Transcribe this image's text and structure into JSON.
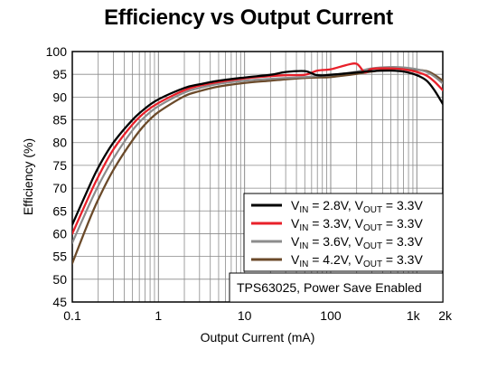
{
  "chart_data": {
    "type": "line",
    "title": "Efficiency vs Output Current",
    "xlabel": "Output Current (mA)",
    "ylabel": "Efficiency (%)",
    "xscale": "log",
    "xlim": [
      0.1,
      2000
    ],
    "ylim": [
      45,
      100
    ],
    "grid": true,
    "x_tick_labels": [
      "0.1",
      "1",
      "10",
      "100",
      "1k",
      "2k"
    ],
    "y_tick_labels": [
      "45",
      "50",
      "55",
      "60",
      "65",
      "70",
      "75",
      "80",
      "85",
      "90",
      "95",
      "100"
    ],
    "legend_position": "bottom-right",
    "annotation": "TPS63025, Power Save Enabled",
    "series": [
      {
        "name_parts": [
          "V",
          "IN",
          " = 2.8V, V",
          "OUT",
          " = 3.3V"
        ],
        "color": "#000000",
        "x": [
          0.1,
          0.15,
          0.2,
          0.3,
          0.5,
          0.7,
          1,
          2,
          3,
          5,
          10,
          20,
          30,
          50,
          70,
          100,
          200,
          300,
          500,
          700,
          1000,
          1300,
          1600,
          2000
        ],
        "y": [
          62,
          69.5,
          74.5,
          80,
          85,
          87.5,
          89.5,
          92,
          92.8,
          93.6,
          94.3,
          94.9,
          95.5,
          95.7,
          94.8,
          94.9,
          95.4,
          95.7,
          95.8,
          95.6,
          94.8,
          93.6,
          91.5,
          88.5
        ]
      },
      {
        "name_parts": [
          "V",
          "IN",
          " = 3.3V, V",
          "OUT",
          " = 3.3V"
        ],
        "color": "#e8202a",
        "x": [
          0.1,
          0.15,
          0.2,
          0.3,
          0.5,
          0.7,
          1,
          2,
          3,
          5,
          10,
          20,
          30,
          50,
          70,
          100,
          150,
          200,
          250,
          300,
          500,
          700,
          1000,
          1300,
          1600,
          2000
        ],
        "y": [
          60,
          67.5,
          72.5,
          78.5,
          84,
          86.7,
          88.7,
          91.5,
          92.5,
          93.3,
          94.1,
          94.6,
          94.8,
          94.9,
          95.8,
          96.1,
          97,
          97.3,
          95.4,
          96.2,
          96.3,
          96.1,
          95.5,
          94.7,
          93.4,
          91.5
        ]
      },
      {
        "name_parts": [
          "V",
          "IN",
          " = 3.6V, V",
          "OUT",
          " = 3.3V"
        ],
        "color": "#8c8c8c",
        "x": [
          0.1,
          0.15,
          0.2,
          0.3,
          0.5,
          0.7,
          1,
          2,
          3,
          5,
          10,
          20,
          30,
          50,
          70,
          100,
          200,
          300,
          500,
          700,
          1000,
          1300,
          1600,
          2000
        ],
        "y": [
          58,
          65.5,
          70.5,
          76.5,
          82.7,
          85.7,
          88,
          91,
          92,
          92.9,
          93.6,
          94,
          94.2,
          94.4,
          94.6,
          94.8,
          95.6,
          96.3,
          96.6,
          96.5,
          96.1,
          95.5,
          94.5,
          93
        ],
        "linewidth": 2.2
      },
      {
        "name_parts": [
          "V",
          "IN",
          " = 4.2V, V",
          "OUT",
          " = 3.3V"
        ],
        "color": "#6b4a2a",
        "x": [
          0.1,
          0.15,
          0.2,
          0.3,
          0.5,
          0.7,
          1,
          2,
          3,
          5,
          10,
          20,
          30,
          50,
          70,
          100,
          200,
          300,
          500,
          700,
          1000,
          1300,
          1600,
          2000
        ],
        "y": [
          53.5,
          62,
          67.5,
          74,
          80.5,
          84,
          86.7,
          90.2,
          91.3,
          92.3,
          93.1,
          93.6,
          93.9,
          94.2,
          94.3,
          94.4,
          95.1,
          95.6,
          96.2,
          96.2,
          96,
          95.7,
          94.9,
          93.6
        ]
      }
    ]
  }
}
